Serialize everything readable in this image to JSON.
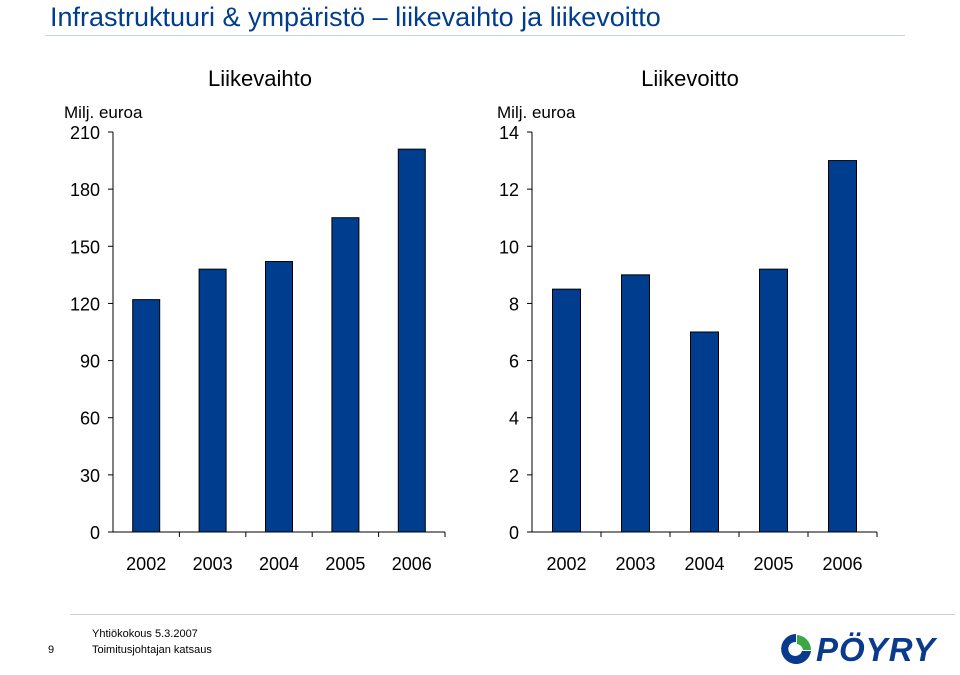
{
  "title": "Infrastruktuuri & ympäristö – liikevaihto ja liikevoitto",
  "chart_data": [
    {
      "type": "bar",
      "title": "Liikevaihto",
      "ylabel": "Milj. euroa",
      "categories": [
        "2002",
        "2003",
        "2004",
        "2005",
        "2006"
      ],
      "values": [
        122,
        138,
        142,
        165,
        201
      ],
      "ylim": [
        0,
        210
      ],
      "yticks": [
        "0",
        "30",
        "60",
        "90",
        "120",
        "150",
        "180",
        "210"
      ],
      "bar_color": "#003d8f",
      "grid": false
    },
    {
      "type": "bar",
      "title": "Liikevoitto",
      "ylabel": "Milj. euroa",
      "categories": [
        "2002",
        "2003",
        "2004",
        "2005",
        "2006"
      ],
      "values": [
        8.5,
        9.0,
        7.0,
        9.2,
        13.0
      ],
      "ylim": [
        0,
        14
      ],
      "yticks": [
        "0",
        "2",
        "4",
        "6",
        "8",
        "10",
        "12",
        "14"
      ],
      "bar_color": "#003d8f",
      "grid": false
    }
  ],
  "footer": {
    "page_number": "9",
    "line1": "Yhtiökokous 5.3.2007",
    "line2": "Toimitusjohtajan katsaus",
    "logo_text": "PÖYRY"
  },
  "colors": {
    "title": "#003d8f",
    "bars": "#003d8f",
    "logo_blue": "#0a3a8c",
    "logo_green": "#3aa843"
  }
}
